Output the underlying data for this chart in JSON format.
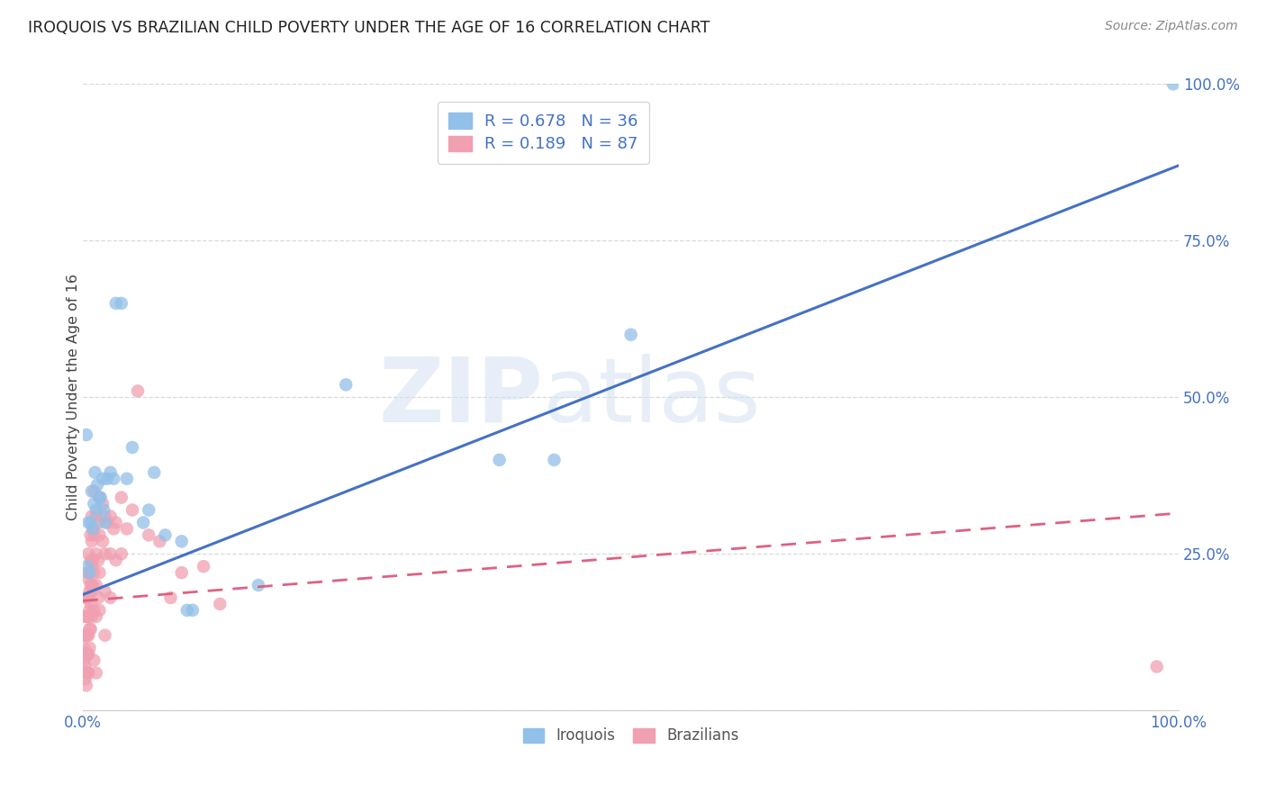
{
  "title": "IROQUOIS VS BRAZILIAN CHILD POVERTY UNDER THE AGE OF 16 CORRELATION CHART",
  "source": "Source: ZipAtlas.com",
  "ylabel": "Child Poverty Under the Age of 16",
  "xlim": [
    0,
    1
  ],
  "ylim": [
    0,
    1
  ],
  "xticks": [
    0.0,
    0.25,
    0.5,
    0.75,
    1.0
  ],
  "xticklabels": [
    "0.0%",
    "",
    "",
    "",
    "100.0%"
  ],
  "yticks": [
    0.0,
    0.25,
    0.5,
    0.75,
    1.0
  ],
  "yticklabels": [
    "",
    "25.0%",
    "50.0%",
    "75.0%",
    "100.0%"
  ],
  "watermark_zip": "ZIP",
  "watermark_atlas": "atlas",
  "legend_r1": "R = 0.678",
  "legend_n1": "N = 36",
  "legend_r2": "R = 0.189",
  "legend_n2": "N = 87",
  "blue_color": "#92c0e8",
  "pink_color": "#f0a0b0",
  "blue_line_color": "#4472c4",
  "pink_line_color": "#e06080",
  "title_color": "#222222",
  "tick_color": "#4472c4",
  "grid_color": "#d0d0d0",
  "background_color": "#ffffff",
  "iroquois_scatter": [
    [
      0.003,
      0.44
    ],
    [
      0.004,
      0.23
    ],
    [
      0.005,
      0.3
    ],
    [
      0.006,
      0.22
    ],
    [
      0.007,
      0.3
    ],
    [
      0.008,
      0.35
    ],
    [
      0.009,
      0.29
    ],
    [
      0.01,
      0.33
    ],
    [
      0.011,
      0.38
    ],
    [
      0.012,
      0.32
    ],
    [
      0.013,
      0.36
    ],
    [
      0.015,
      0.34
    ],
    [
      0.016,
      0.34
    ],
    [
      0.018,
      0.37
    ],
    [
      0.019,
      0.32
    ],
    [
      0.02,
      0.3
    ],
    [
      0.022,
      0.37
    ],
    [
      0.025,
      0.38
    ],
    [
      0.028,
      0.37
    ],
    [
      0.03,
      0.65
    ],
    [
      0.035,
      0.65
    ],
    [
      0.04,
      0.37
    ],
    [
      0.045,
      0.42
    ],
    [
      0.055,
      0.3
    ],
    [
      0.06,
      0.32
    ],
    [
      0.065,
      0.38
    ],
    [
      0.075,
      0.28
    ],
    [
      0.09,
      0.27
    ],
    [
      0.095,
      0.16
    ],
    [
      0.1,
      0.16
    ],
    [
      0.16,
      0.2
    ],
    [
      0.24,
      0.52
    ],
    [
      0.38,
      0.4
    ],
    [
      0.43,
      0.4
    ],
    [
      0.5,
      0.6
    ],
    [
      0.995,
      1.0
    ]
  ],
  "brazilian_scatter": [
    [
      0.001,
      0.1
    ],
    [
      0.001,
      0.12
    ],
    [
      0.001,
      0.08
    ],
    [
      0.002,
      0.15
    ],
    [
      0.002,
      0.12
    ],
    [
      0.002,
      0.09
    ],
    [
      0.002,
      0.07
    ],
    [
      0.002,
      0.05
    ],
    [
      0.003,
      0.18
    ],
    [
      0.003,
      0.15
    ],
    [
      0.003,
      0.12
    ],
    [
      0.003,
      0.09
    ],
    [
      0.003,
      0.06
    ],
    [
      0.003,
      0.04
    ],
    [
      0.004,
      0.22
    ],
    [
      0.004,
      0.18
    ],
    [
      0.004,
      0.15
    ],
    [
      0.004,
      0.12
    ],
    [
      0.004,
      0.09
    ],
    [
      0.004,
      0.06
    ],
    [
      0.005,
      0.25
    ],
    [
      0.005,
      0.21
    ],
    [
      0.005,
      0.18
    ],
    [
      0.005,
      0.15
    ],
    [
      0.005,
      0.12
    ],
    [
      0.005,
      0.09
    ],
    [
      0.005,
      0.06
    ],
    [
      0.006,
      0.22
    ],
    [
      0.006,
      0.19
    ],
    [
      0.006,
      0.16
    ],
    [
      0.006,
      0.13
    ],
    [
      0.006,
      0.1
    ],
    [
      0.007,
      0.28
    ],
    [
      0.007,
      0.24
    ],
    [
      0.007,
      0.2
    ],
    [
      0.007,
      0.17
    ],
    [
      0.007,
      0.13
    ],
    [
      0.008,
      0.31
    ],
    [
      0.008,
      0.27
    ],
    [
      0.008,
      0.23
    ],
    [
      0.008,
      0.19
    ],
    [
      0.008,
      0.15
    ],
    [
      0.009,
      0.29
    ],
    [
      0.009,
      0.24
    ],
    [
      0.009,
      0.2
    ],
    [
      0.01,
      0.35
    ],
    [
      0.01,
      0.28
    ],
    [
      0.01,
      0.22
    ],
    [
      0.01,
      0.16
    ],
    [
      0.01,
      0.08
    ],
    [
      0.012,
      0.31
    ],
    [
      0.012,
      0.25
    ],
    [
      0.012,
      0.2
    ],
    [
      0.012,
      0.15
    ],
    [
      0.012,
      0.06
    ],
    [
      0.014,
      0.3
    ],
    [
      0.014,
      0.24
    ],
    [
      0.014,
      0.18
    ],
    [
      0.015,
      0.34
    ],
    [
      0.015,
      0.28
    ],
    [
      0.015,
      0.22
    ],
    [
      0.015,
      0.16
    ],
    [
      0.018,
      0.33
    ],
    [
      0.018,
      0.27
    ],
    [
      0.02,
      0.31
    ],
    [
      0.02,
      0.25
    ],
    [
      0.02,
      0.19
    ],
    [
      0.02,
      0.12
    ],
    [
      0.022,
      0.3
    ],
    [
      0.025,
      0.31
    ],
    [
      0.025,
      0.25
    ],
    [
      0.025,
      0.18
    ],
    [
      0.028,
      0.29
    ],
    [
      0.03,
      0.3
    ],
    [
      0.03,
      0.24
    ],
    [
      0.035,
      0.34
    ],
    [
      0.035,
      0.25
    ],
    [
      0.04,
      0.29
    ],
    [
      0.045,
      0.32
    ],
    [
      0.05,
      0.51
    ],
    [
      0.06,
      0.28
    ],
    [
      0.07,
      0.27
    ],
    [
      0.08,
      0.18
    ],
    [
      0.09,
      0.22
    ],
    [
      0.11,
      0.23
    ],
    [
      0.125,
      0.17
    ],
    [
      0.98,
      0.07
    ]
  ],
  "iroquois_trendline_x": [
    0.0,
    1.0
  ],
  "iroquois_trendline_y": [
    0.185,
    0.87
  ],
  "brazilian_trendline_x": [
    0.0,
    1.0
  ],
  "brazilian_trendline_y": [
    0.175,
    0.315
  ]
}
